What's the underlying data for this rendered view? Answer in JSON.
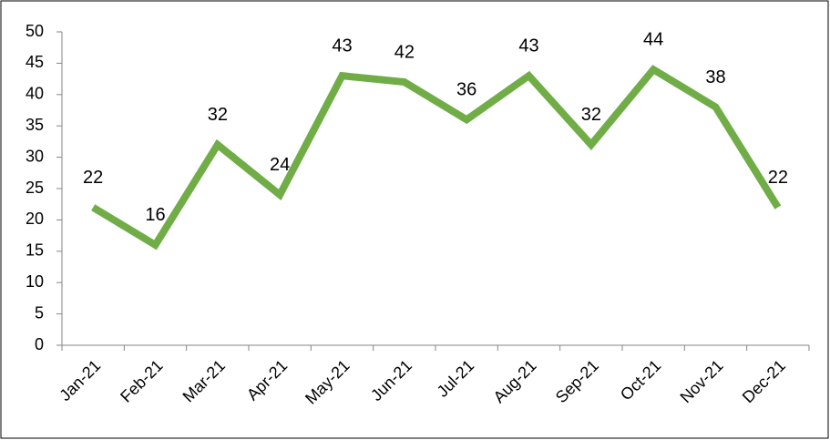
{
  "chart_data": {
    "type": "line",
    "categories": [
      "Jan-21",
      "Feb-21",
      "Mar-21",
      "Apr-21",
      "May-21",
      "Jun-21",
      "Jul-21",
      "Aug-21",
      "Sep-21",
      "Oct-21",
      "Nov-21",
      "Dec-21"
    ],
    "values": [
      22,
      16,
      32,
      24,
      43,
      42,
      36,
      43,
      32,
      44,
      38,
      22
    ],
    "color": "#70ad47",
    "ylim": [
      0,
      50
    ],
    "yticks": [
      0,
      5,
      10,
      15,
      20,
      25,
      30,
      35,
      40,
      45,
      50
    ],
    "data_labels": true
  }
}
